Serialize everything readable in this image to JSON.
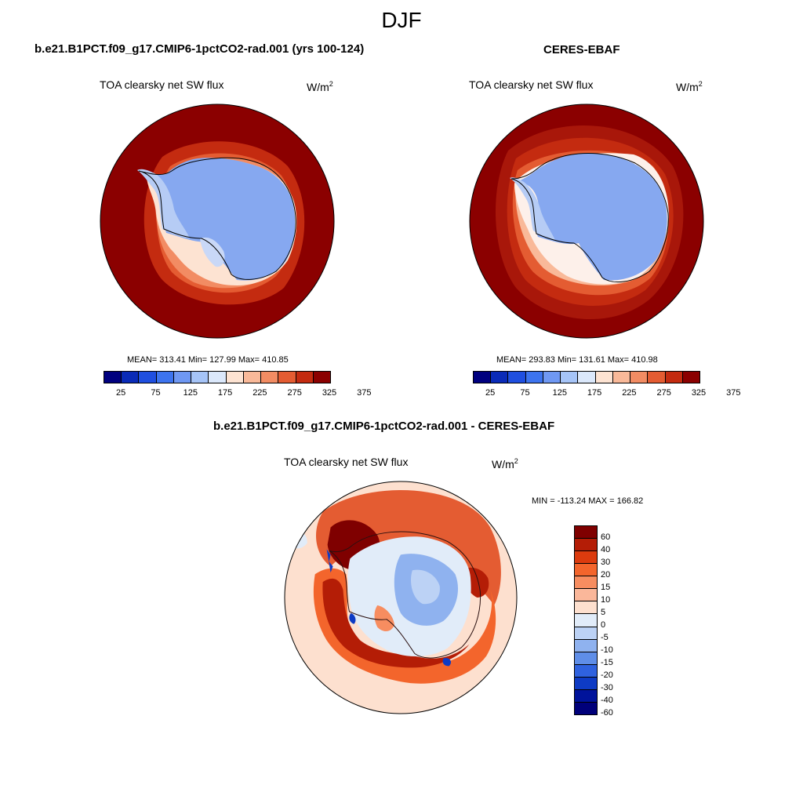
{
  "figure": {
    "season": "DJF"
  },
  "panels": {
    "model": {
      "title": "b.e21.B1PCT.f09_g17.CMIP6-1pctCO2-rad.001 (yrs 100-124)",
      "variable": "TOA clearsky net SW flux",
      "units_base": "W/m",
      "units_exp": "2",
      "stats": "MEAN= 313.41  Min= 127.99  Max= 410.85"
    },
    "obs": {
      "title": "CERES-EBAF",
      "variable": "TOA clearsky net SW flux",
      "units_base": "W/m",
      "units_exp": "2",
      "stats": "MEAN= 293.83  Min= 131.61  Max= 410.98"
    },
    "diff": {
      "title": "b.e21.B1PCT.f09_g17.CMIP6-1pctCO2-rad.001 - CERES-EBAF",
      "variable": "TOA clearsky net SW flux",
      "units_base": "W/m",
      "units_exp": "2",
      "stats": "MIN = -113.24 MAX = 166.82"
    }
  },
  "colorbars": {
    "absolute": {
      "colors": [
        "#00007f",
        "#0a2bb8",
        "#1f4fe0",
        "#3d74ef",
        "#6f98f3",
        "#a6c4f7",
        "#dbe8fb",
        "#fde3d2",
        "#f9b999",
        "#f28c63",
        "#e45c32",
        "#c42b10",
        "#8b0000"
      ],
      "labels": [
        "25",
        "75",
        "125",
        "175",
        "225",
        "275",
        "325",
        "375"
      ]
    },
    "difference": {
      "colors": [
        "#7f0000",
        "#b41d06",
        "#dc3b0e",
        "#f3652c",
        "#f78d60",
        "#fab79a",
        "#fde0cf",
        "#e1ecf9",
        "#bcd2f5",
        "#8fb2ef",
        "#5f8ee8",
        "#2f62df",
        "#0e3bc4",
        "#00139b",
        "#00007a"
      ],
      "labels": [
        "60",
        "40",
        "30",
        "20",
        "15",
        "10",
        "5",
        "0",
        "-5",
        "-10",
        "-15",
        "-20",
        "-30",
        "-40",
        "-60"
      ]
    }
  },
  "map_data": {
    "projection": "south-polar-stereographic",
    "model_field": {
      "ocean_far": "#8b0000",
      "ocean_mid": "#c42b10",
      "ice_edge": "#f28c63",
      "ice_margin": "#fde3d2",
      "antarctica": "#86a8f0",
      "peninsula": "#b6ccf5",
      "ross_ice": "#c9d8f7"
    },
    "obs_field": {
      "ocean_far": "#8b0000",
      "ocean_mid": "#c42b10",
      "ice_edge": "#f9b999",
      "ice_margin": "#fdf0ea",
      "antarctica": "#86a8f0",
      "peninsula": "#b6ccf5"
    },
    "diff_field": {
      "background": "#fde0cf",
      "ring_strong": "#7f0000",
      "ring_mid": "#f3652c",
      "interior": "#e1ecf9",
      "interior_neg": "#8fb2ef",
      "neg_spots": "#2f62df"
    }
  }
}
